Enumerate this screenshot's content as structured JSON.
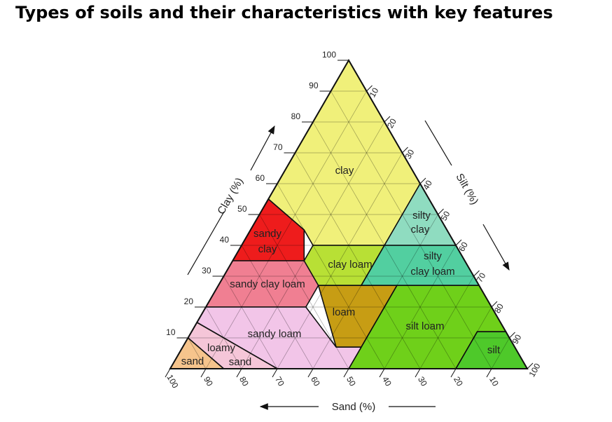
{
  "title": "Types of soils and their characteristics with key features",
  "axes": {
    "clay": "Clay (%)",
    "silt": "Silt (%)",
    "sand": "Sand (%)"
  },
  "ticks": {
    "clay": [
      "10",
      "20",
      "30",
      "40",
      "50",
      "60",
      "70",
      "80",
      "90",
      "100"
    ],
    "silt": [
      "10",
      "20",
      "30",
      "40",
      "50",
      "60",
      "70",
      "80",
      "90",
      "100"
    ],
    "sand": [
      "100",
      "90",
      "80",
      "70",
      "60",
      "50",
      "40",
      "30",
      "20",
      "10"
    ]
  },
  "regions": {
    "clay": "clay",
    "silty_clay_1": "silty",
    "silty_clay_2": "clay",
    "sandy_clay_1": "sandy",
    "sandy_clay_2": "clay",
    "clay_loam": "clay loam",
    "silty_clay_loam_1": "silty",
    "silty_clay_loam_2": "clay loam",
    "sandy_clay_loam": "sandy clay loam",
    "loam": "loam",
    "silt_loam": "silt loam",
    "sandy_loam": "sandy loam",
    "loamy_sand_1": "loamy",
    "loamy_sand_2": "sand",
    "sand": "sand",
    "silt": "silt"
  },
  "colors": {
    "clay": "#f0f07a",
    "silty_clay": "#8fdcc0",
    "sandy_clay": "#ee1c1c",
    "clay_loam": "#b8e035",
    "silty_clay_loam": "#52cfa0",
    "sandy_clay_loam": "#f07f92",
    "loam": "#c79d14",
    "silt_loam": "#6fd01a",
    "sandy_loam": "#f2c5e8",
    "loamy_sand": "#f5c6d8",
    "sand": "#f6c48c",
    "silt": "#4ec92a"
  }
}
